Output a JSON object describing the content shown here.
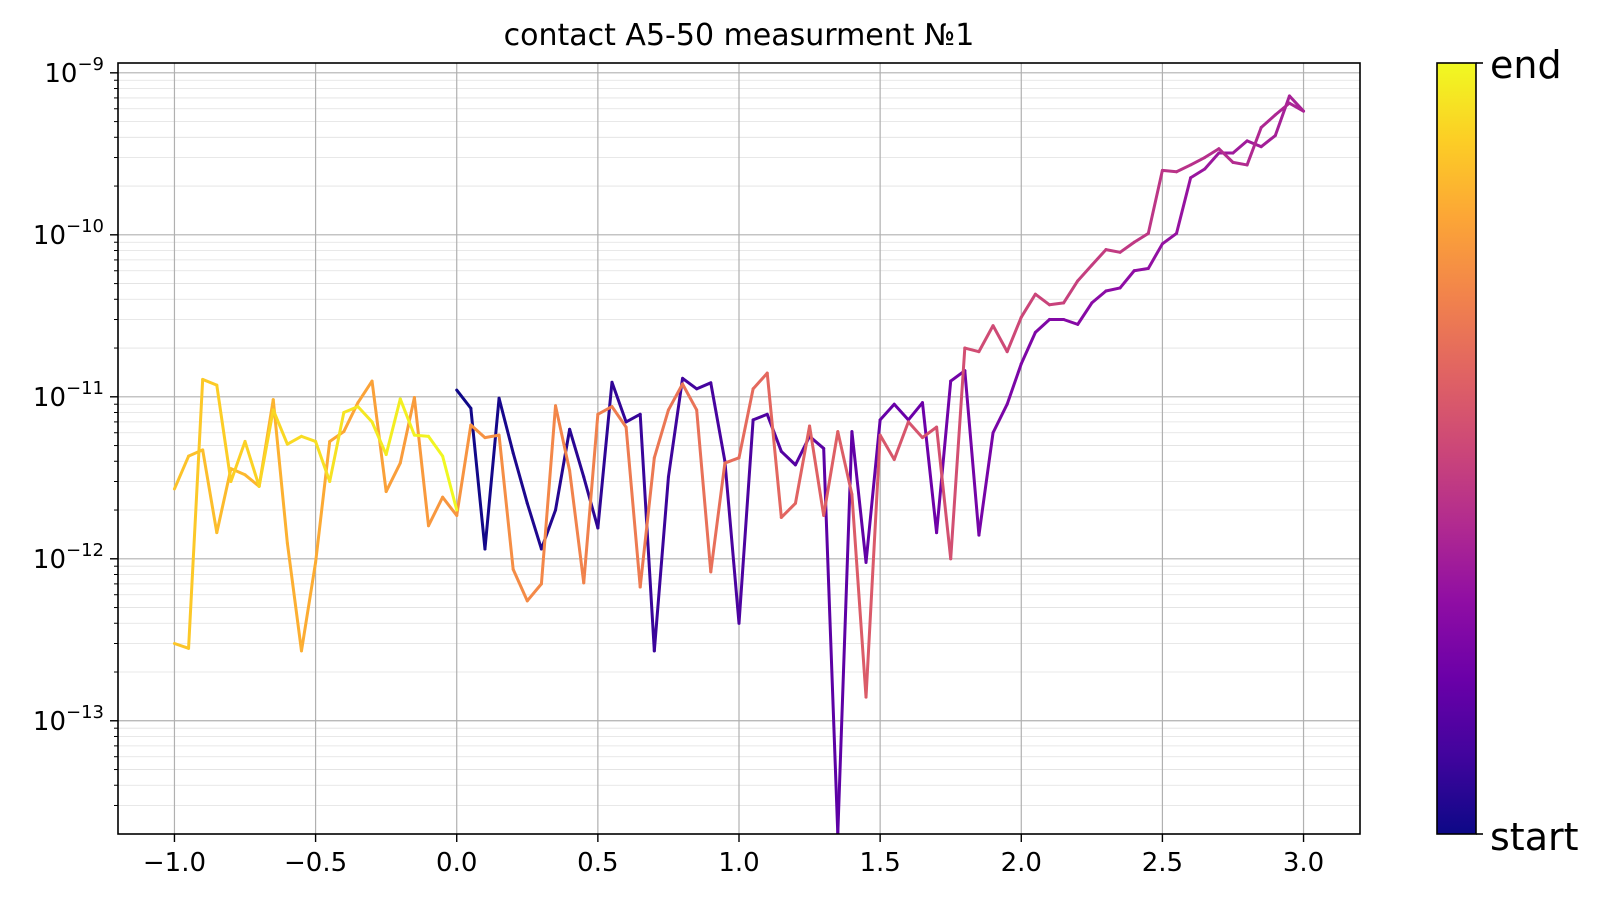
{
  "chart_data": {
    "type": "line",
    "title": "contact A5-50 measurment №1",
    "xlabel": "",
    "ylabel": "",
    "xlim": [
      -1.2,
      3.2
    ],
    "ylim": [
      2e-14,
      1.15e-09
    ],
    "y_scale": "log",
    "grid": true,
    "minor_grid": true,
    "x_ticks": [
      -1.0,
      -0.5,
      0.0,
      0.5,
      1.0,
      1.5,
      2.0,
      2.5,
      3.0
    ],
    "x_tick_labels": [
      "−1.0",
      "−0.5",
      "0.0",
      "0.5",
      "1.0",
      "1.5",
      "2.0",
      "2.5",
      "3.0"
    ],
    "y_ticks": [
      {
        "value": 1e-09,
        "base": "10",
        "exp": "−9"
      },
      {
        "value": 1e-10,
        "base": "10",
        "exp": "−10"
      },
      {
        "value": 1e-11,
        "base": "10",
        "exp": "−11"
      },
      {
        "value": 1e-12,
        "base": "10",
        "exp": "−12"
      },
      {
        "value": 1e-13,
        "base": "10",
        "exp": "−13"
      }
    ],
    "colorbar": {
      "colormap": "plasma",
      "label_top": "end",
      "label_bottom": "start",
      "colors": [
        "#0d0887",
        "#41049d",
        "#6a00a8",
        "#8f0da4",
        "#b12a90",
        "#cc4778",
        "#e16462",
        "#f2844b",
        "#fca636",
        "#fcce25",
        "#f0f921"
      ]
    },
    "series": [
      {
        "x": [
          0.0,
          0.05,
          0.1,
          0.15,
          0.2,
          0.25,
          0.3,
          0.35,
          0.4,
          0.45,
          0.5,
          0.55,
          0.6,
          0.65,
          0.7,
          0.75,
          0.8,
          0.85,
          0.9,
          0.95,
          1.0,
          1.05,
          1.1,
          1.15,
          1.2,
          1.25,
          1.3,
          1.35,
          1.4,
          1.45,
          1.5,
          1.55,
          1.6,
          1.65,
          1.7,
          1.75,
          1.8,
          1.85,
          1.9,
          1.95,
          2.0,
          2.05,
          2.1,
          2.15,
          2.2,
          2.25,
          2.3,
          2.35,
          2.4,
          2.45,
          2.5,
          2.55,
          2.6,
          2.65,
          2.7,
          2.75,
          2.8,
          2.85,
          2.9,
          2.95,
          3.0
        ],
        "y": [
          1.1e-11,
          8.5e-12,
          1.15e-12,
          9.8e-12,
          4.5e-12,
          2.2e-12,
          1.15e-12,
          2e-12,
          6.3e-12,
          3.2e-12,
          1.55e-12,
          1.23e-11,
          7e-12,
          7.8e-12,
          2.7e-13,
          3.2e-12,
          1.3e-11,
          1.12e-11,
          1.22e-11,
          4e-12,
          4e-13,
          7.2e-12,
          7.8e-12,
          4.6e-12,
          3.8e-12,
          5.7e-12,
          4.8e-12,
          2e-14,
          6.1e-12,
          9.5e-13,
          7.2e-12,
          9e-12,
          7.2e-12,
          9.2e-12,
          1.45e-12,
          1.25e-11,
          1.45e-11,
          1.4e-12,
          6e-12,
          9e-12,
          1.6e-11,
          2.5e-11,
          3e-11,
          3e-11,
          2.8e-11,
          3.8e-11,
          4.5e-11,
          4.7e-11,
          6e-11,
          6.2e-11,
          8.8e-11,
          1.02e-10,
          2.25e-10,
          2.55e-10,
          3.2e-10,
          3.2e-10,
          3.8e-10,
          3.5e-10,
          4.1e-10,
          7.2e-10,
          5.8e-10
        ]
      },
      {
        "x": [
          3.0,
          2.95,
          2.9,
          2.85,
          2.8,
          2.75,
          2.7,
          2.65,
          2.6,
          2.55,
          2.5,
          2.45,
          2.4,
          2.35,
          2.3,
          2.25,
          2.2,
          2.15,
          2.1,
          2.05,
          2.0,
          1.95,
          1.9,
          1.85,
          1.8,
          1.75,
          1.7,
          1.65,
          1.6,
          1.55,
          1.5,
          1.45,
          1.4,
          1.35,
          1.3,
          1.25,
          1.2,
          1.15,
          1.1,
          1.05,
          1.0,
          0.95,
          0.9,
          0.85,
          0.8,
          0.75,
          0.7,
          0.65,
          0.6,
          0.55,
          0.5,
          0.45,
          0.4,
          0.35,
          0.3,
          0.25,
          0.2,
          0.15,
          0.1,
          0.05,
          0.0
        ],
        "y": [
          5.8e-10,
          6.5e-10,
          5.5e-10,
          4.6e-10,
          2.7e-10,
          2.8e-10,
          3.4e-10,
          3e-10,
          2.7e-10,
          2.45e-10,
          2.5e-10,
          1.02e-10,
          9e-11,
          7.8e-11,
          8.1e-11,
          6.5e-11,
          5.2e-11,
          3.8e-11,
          3.7e-11,
          4.3e-11,
          3.1e-11,
          1.9e-11,
          2.75e-11,
          1.9e-11,
          2e-11,
          1e-12,
          6.5e-12,
          5.6e-12,
          7e-12,
          4.1e-12,
          5.8e-12,
          1.4e-13,
          2.5e-12,
          6.1e-12,
          1.85e-12,
          6.6e-12,
          2.2e-12,
          1.8e-12,
          1.4e-11,
          1.12e-11,
          4.2e-12,
          3.9e-12,
          8.3e-13,
          8.3e-12,
          1.2e-11,
          8.3e-12,
          4.2e-12,
          6.7e-13,
          6.5e-12,
          8.7e-12,
          7.8e-12,
          7.1e-13,
          3.5e-12,
          8.8e-12,
          7e-13,
          5.5e-13,
          8.6e-13,
          5.8e-12,
          5.6e-12,
          6.7e-12,
          1.85e-12
        ]
      },
      {
        "x": [
          0.0,
          -0.05,
          -0.1,
          -0.15,
          -0.2,
          -0.25,
          -0.3,
          -0.35,
          -0.4,
          -0.45,
          -0.5,
          -0.55,
          -0.6,
          -0.65,
          -0.7,
          -0.75,
          -0.8,
          -0.85,
          -0.9,
          -0.95,
          -1.0
        ],
        "y": [
          1.85e-12,
          2.4e-12,
          1.6e-12,
          9.9e-12,
          3.9e-12,
          2.6e-12,
          1.25e-11,
          9.2e-12,
          6.1e-12,
          5.3e-12,
          9.5e-13,
          2.7e-13,
          1.25e-12,
          9.6e-12,
          2.8e-12,
          3.3e-12,
          3.6e-12,
          1.45e-12,
          4.7e-12,
          4.3e-12,
          2.7e-12
        ]
      },
      {
        "x": [
          -1.0,
          -0.95,
          -0.9,
          -0.85,
          -0.8,
          -0.75,
          -0.7,
          -0.65,
          -0.6,
          -0.55,
          -0.5,
          -0.45,
          -0.4,
          -0.35,
          -0.3,
          -0.25,
          -0.2,
          -0.15,
          -0.1,
          -0.05,
          0.0
        ],
        "y": [
          3e-13,
          2.8e-13,
          1.28e-11,
          1.18e-11,
          3e-12,
          5.3e-12,
          2.8e-12,
          8.3e-12,
          5.1e-12,
          5.7e-12,
          5.3e-12,
          3e-12,
          8e-12,
          8.7e-12,
          7e-12,
          4.4e-12,
          9.7e-12,
          5.8e-12,
          5.7e-12,
          4.3e-12,
          2e-12
        ]
      }
    ]
  }
}
